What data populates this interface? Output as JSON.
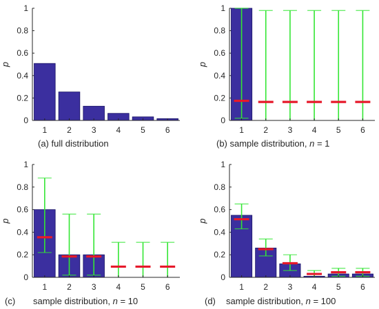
{
  "chart_data": [
    {
      "type": "bar",
      "panel": "a",
      "caption_prefix": "(a)",
      "caption_text": "full distribution",
      "caption_var": "",
      "caption_eq": "",
      "caption_val": "",
      "ylabel": "p",
      "ylim": [
        0,
        1
      ],
      "yticks": [
        "0",
        "0.2",
        "0.4",
        "0.6",
        "0.8",
        "1"
      ],
      "categories": [
        "1",
        "2",
        "3",
        "4",
        "5",
        "6"
      ],
      "values": [
        0.508,
        0.254,
        0.127,
        0.063,
        0.032,
        0.016
      ],
      "mean": null,
      "err_low": null,
      "err_high": null
    },
    {
      "type": "bar",
      "panel": "b",
      "caption_prefix": "(b)",
      "caption_text": "sample distribution, ",
      "caption_var": "n",
      "caption_eq": " = ",
      "caption_val": "1",
      "ylabel": "p",
      "ylim": [
        0,
        1
      ],
      "yticks": [
        "0",
        "0.2",
        "0.4",
        "0.6",
        "0.8",
        "1"
      ],
      "categories": [
        "1",
        "2",
        "3",
        "4",
        "5",
        "6"
      ],
      "values": [
        1,
        0,
        0,
        0,
        0,
        0
      ],
      "mean": [
        0.175,
        0.165,
        0.165,
        0.165,
        0.165,
        0.165
      ],
      "err_low": [
        0.02,
        0.0,
        0.0,
        0.0,
        0.0,
        0.0
      ],
      "err_high": [
        1.0,
        0.98,
        0.98,
        0.98,
        0.98,
        0.98
      ]
    },
    {
      "type": "bar",
      "panel": "c",
      "caption_prefix": "(c)",
      "caption_text": "sample distribution, ",
      "caption_var": "n",
      "caption_eq": " = ",
      "caption_val": "10",
      "ylabel": "p",
      "ylim": [
        0,
        1
      ],
      "yticks": [
        "0",
        "0.2",
        "0.4",
        "0.6",
        "0.8",
        "1"
      ],
      "categories": [
        "1",
        "2",
        "3",
        "4",
        "5",
        "6"
      ],
      "values": [
        0.6,
        0.2,
        0.2,
        0,
        0,
        0
      ],
      "mean": [
        0.355,
        0.185,
        0.185,
        0.095,
        0.095,
        0.095
      ],
      "err_low": [
        0.22,
        0.02,
        0.02,
        0.0,
        0.0,
        0.0
      ],
      "err_high": [
        0.88,
        0.56,
        0.56,
        0.31,
        0.31,
        0.31
      ]
    },
    {
      "type": "bar",
      "panel": "d",
      "caption_prefix": "(d)",
      "caption_text": "sample distribution, ",
      "caption_var": "n",
      "caption_eq": " = ",
      "caption_val": "100",
      "ylabel": "p",
      "ylim": [
        0,
        1
      ],
      "yticks": [
        "0",
        "0.2",
        "0.4",
        "0.6",
        "0.8",
        "1"
      ],
      "categories": [
        "1",
        "2",
        "3",
        "4",
        "5",
        "6"
      ],
      "values": [
        0.55,
        0.26,
        0.12,
        0.01,
        0.03,
        0.03
      ],
      "mean": [
        0.515,
        0.25,
        0.125,
        0.03,
        0.045,
        0.045
      ],
      "err_low": [
        0.43,
        0.19,
        0.06,
        0.0,
        0.01,
        0.01
      ],
      "err_high": [
        0.65,
        0.34,
        0.2,
        0.06,
        0.08,
        0.08
      ]
    }
  ],
  "colors": {
    "bar_fill": "#3b2f9f",
    "bar_edge": "#1a1466",
    "errorbar": "#33e633",
    "mean_marker": "#e6192a",
    "axis": "#262626"
  }
}
